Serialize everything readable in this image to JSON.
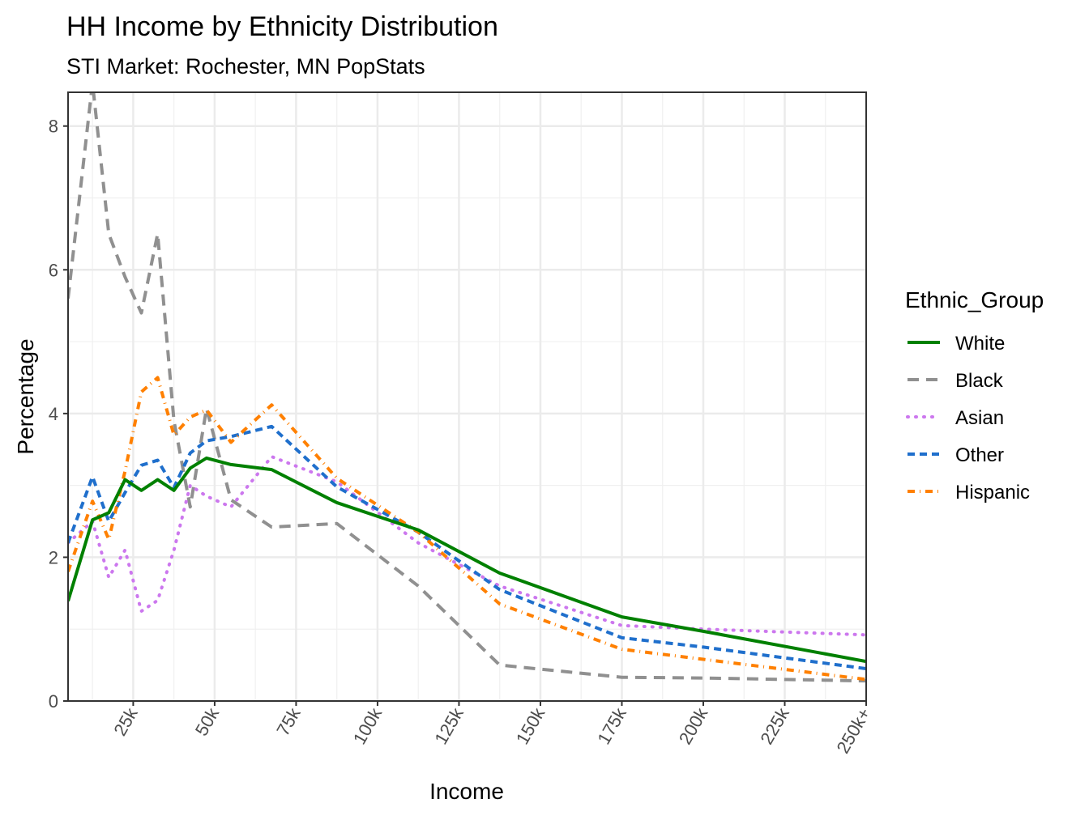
{
  "chart_data": {
    "type": "line",
    "title": "HH Income by Ethnicity Distribution",
    "subtitle": "STI Market: Rochester, MN PopStats",
    "xlabel": "Income",
    "ylabel": "Percentage",
    "xlim": [
      5,
      250
    ],
    "ylim": [
      0,
      8.47
    ],
    "x_ticks": [
      25,
      50,
      75,
      100,
      125,
      150,
      175,
      200,
      225,
      250
    ],
    "x_tick_labels": [
      "25k",
      "50k",
      "75k",
      "100k",
      "125k",
      "150k",
      "175k",
      "200k",
      "225k",
      "250k+"
    ],
    "y_ticks": [
      0,
      2,
      4,
      6,
      8
    ],
    "y_tick_labels": [
      "0",
      "2",
      "4",
      "6",
      "8"
    ],
    "grid": true,
    "legend": {
      "title": "Ethnic_Group",
      "position": "right"
    },
    "x": [
      5,
      12.5,
      17.5,
      22.5,
      27.5,
      32.5,
      37.5,
      42.5,
      47.5,
      55,
      67.5,
      87.5,
      112.5,
      137.5,
      175,
      200,
      250
    ],
    "series": [
      {
        "name": "White",
        "color": "#008000",
        "dash": "solid",
        "values": [
          1.39,
          2.52,
          2.62,
          3.08,
          2.93,
          3.08,
          2.93,
          3.24,
          3.38,
          3.29,
          3.22,
          2.76,
          2.38,
          1.78,
          1.17,
          0.97,
          0.55
        ]
      },
      {
        "name": "Black",
        "color": "#909090",
        "dash": "longdash",
        "values": [
          5.6,
          8.6,
          6.5,
          5.9,
          5.4,
          6.5,
          3.9,
          2.7,
          4.07,
          2.8,
          2.42,
          2.47,
          1.6,
          0.5,
          0.33,
          0.32,
          0.28
        ]
      },
      {
        "name": "Asian",
        "color": "#CC77EE",
        "dash": "dotted",
        "values": [
          2.2,
          2.5,
          1.72,
          2.1,
          1.25,
          1.4,
          2.1,
          3.0,
          2.85,
          2.7,
          3.4,
          3.05,
          2.2,
          1.6,
          1.05,
          1.0,
          0.92
        ]
      },
      {
        "name": "Other",
        "color": "#1F6FCC",
        "dash": "dashed",
        "values": [
          2.2,
          3.12,
          2.5,
          2.9,
          3.28,
          3.35,
          2.97,
          3.45,
          3.62,
          3.68,
          3.82,
          2.98,
          2.35,
          1.55,
          0.88,
          0.75,
          0.45
        ]
      },
      {
        "name": "Hispanic",
        "color": "#FF8000",
        "dash": "dotdash",
        "values": [
          1.8,
          2.78,
          2.25,
          3.2,
          4.3,
          4.5,
          3.7,
          3.95,
          4.05,
          3.6,
          4.12,
          3.1,
          2.35,
          1.35,
          0.72,
          0.58,
          0.3
        ]
      }
    ]
  }
}
